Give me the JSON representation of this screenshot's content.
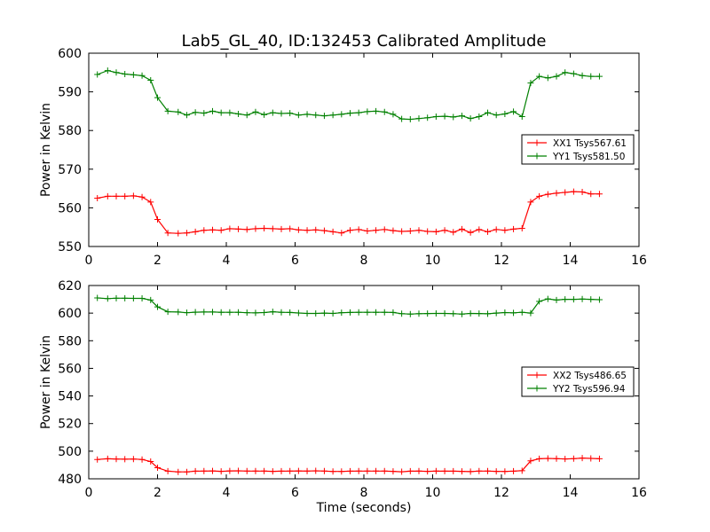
{
  "figure": {
    "title": "Lab5_GL_40, ID:132453 Calibrated Amplitude",
    "xlabel": "Time (seconds)"
  },
  "chart_data": [
    {
      "type": "line",
      "title": "Lab5_GL_40, ID:132453 Calibrated Amplitude",
      "xlabel": "",
      "ylabel": "Power in Kelvin",
      "xlim": [
        0,
        16
      ],
      "ylim": [
        550,
        600
      ],
      "xticks": [
        "0",
        "2",
        "4",
        "6",
        "8",
        "10",
        "12",
        "14",
        "16"
      ],
      "yticks": [
        "550",
        "560",
        "570",
        "580",
        "590",
        "600"
      ],
      "grid": false,
      "legend_position": "right",
      "x": [
        0.25,
        0.55,
        0.8,
        1.05,
        1.3,
        1.55,
        1.8,
        2.0,
        2.3,
        2.6,
        2.85,
        3.1,
        3.35,
        3.6,
        3.85,
        4.1,
        4.35,
        4.6,
        4.85,
        5.1,
        5.35,
        5.6,
        5.85,
        6.1,
        6.35,
        6.6,
        6.85,
        7.1,
        7.35,
        7.6,
        7.85,
        8.1,
        8.35,
        8.6,
        8.85,
        9.1,
        9.35,
        9.6,
        9.85,
        10.1,
        10.35,
        10.6,
        10.85,
        11.1,
        11.35,
        11.6,
        11.85,
        12.1,
        12.35,
        12.6,
        12.85,
        13.1,
        13.35,
        13.6,
        13.85,
        14.1,
        14.35,
        14.6,
        14.85
      ],
      "series": [
        {
          "name": "XX1 Tsys567.61",
          "color": "#ff0000",
          "values": [
            562.5,
            563.0,
            563.0,
            563.0,
            563.1,
            562.8,
            561.5,
            557.0,
            553.5,
            553.4,
            553.5,
            553.8,
            554.2,
            554.3,
            554.2,
            554.6,
            554.5,
            554.4,
            554.6,
            554.7,
            554.6,
            554.5,
            554.6,
            554.3,
            554.2,
            554.3,
            554.1,
            553.8,
            553.5,
            554.2,
            554.4,
            554.0,
            554.2,
            554.4,
            554.1,
            553.9,
            554.0,
            554.2,
            553.9,
            553.8,
            554.2,
            553.7,
            554.5,
            553.6,
            554.4,
            553.8,
            554.4,
            554.2,
            554.5,
            554.7,
            561.5,
            563.0,
            563.5,
            563.8,
            564.0,
            564.2,
            564.1,
            563.6,
            563.6
          ]
        },
        {
          "name": "YY1 Tsys581.50",
          "color": "#008000",
          "values": [
            594.5,
            595.5,
            595.0,
            594.6,
            594.4,
            594.2,
            593.0,
            588.5,
            585.0,
            584.8,
            584.0,
            584.7,
            584.5,
            585.0,
            584.6,
            584.6,
            584.3,
            584.0,
            584.8,
            584.1,
            584.6,
            584.4,
            584.5,
            584.0,
            584.2,
            584.0,
            583.8,
            584.0,
            584.2,
            584.5,
            584.6,
            584.9,
            585.0,
            584.8,
            584.2,
            583.0,
            582.9,
            583.1,
            583.3,
            583.6,
            583.7,
            583.5,
            583.8,
            583.1,
            583.6,
            584.6,
            584.0,
            584.3,
            584.9,
            583.6,
            592.3,
            594.0,
            593.6,
            594.0,
            595.0,
            594.7,
            594.2,
            594.0,
            594.0
          ]
        }
      ]
    },
    {
      "type": "line",
      "title": "",
      "xlabel": "Time (seconds)",
      "ylabel": "Power in Kelvin",
      "xlim": [
        0,
        16
      ],
      "ylim": [
        480,
        620
      ],
      "xticks": [
        "0",
        "2",
        "4",
        "6",
        "8",
        "10",
        "12",
        "14",
        "16"
      ],
      "yticks": [
        "480",
        "500",
        "520",
        "540",
        "560",
        "580",
        "600",
        "620"
      ],
      "grid": false,
      "legend_position": "right",
      "x": [
        0.25,
        0.55,
        0.8,
        1.05,
        1.3,
        1.55,
        1.8,
        2.0,
        2.3,
        2.6,
        2.85,
        3.1,
        3.35,
        3.6,
        3.85,
        4.1,
        4.35,
        4.6,
        4.85,
        5.1,
        5.35,
        5.6,
        5.85,
        6.1,
        6.35,
        6.6,
        6.85,
        7.1,
        7.35,
        7.6,
        7.85,
        8.1,
        8.35,
        8.6,
        8.85,
        9.1,
        9.35,
        9.6,
        9.85,
        10.1,
        10.35,
        10.6,
        10.85,
        11.1,
        11.35,
        11.6,
        11.85,
        12.1,
        12.35,
        12.6,
        12.85,
        13.1,
        13.35,
        13.6,
        13.85,
        14.1,
        14.35,
        14.6,
        14.85
      ],
      "series": [
        {
          "name": "XX2 Tsys486.65",
          "color": "#ff0000",
          "values": [
            494.0,
            494.5,
            494.3,
            494.2,
            494.3,
            494.0,
            492.5,
            488.0,
            485.5,
            485.0,
            485.0,
            485.5,
            485.6,
            485.7,
            485.4,
            485.7,
            485.8,
            485.6,
            485.6,
            485.6,
            485.4,
            485.5,
            485.6,
            485.7,
            485.6,
            485.8,
            485.6,
            485.3,
            485.3,
            485.5,
            485.6,
            485.6,
            485.6,
            485.6,
            485.4,
            485.1,
            485.5,
            485.6,
            485.4,
            485.6,
            485.5,
            485.5,
            485.4,
            485.2,
            485.6,
            485.6,
            485.4,
            485.3,
            485.5,
            485.9,
            493.0,
            494.5,
            494.8,
            494.6,
            494.4,
            494.6,
            495.0,
            494.8,
            494.5
          ]
        },
        {
          "name": "YY2 Tsys596.94",
          "color": "#008000",
          "values": [
            611.0,
            610.5,
            610.8,
            610.8,
            610.7,
            610.7,
            609.5,
            604.5,
            601.0,
            600.8,
            600.3,
            600.7,
            600.8,
            600.8,
            600.6,
            600.6,
            600.6,
            600.3,
            600.2,
            600.4,
            601.0,
            600.6,
            600.5,
            600.1,
            599.8,
            599.8,
            600.0,
            599.8,
            600.3,
            600.5,
            600.6,
            600.6,
            600.6,
            600.6,
            600.5,
            599.6,
            599.3,
            599.6,
            599.7,
            599.8,
            599.8,
            599.6,
            599.3,
            599.8,
            599.7,
            599.5,
            600.0,
            600.4,
            600.2,
            600.6,
            600.0,
            608.5,
            610.3,
            609.5,
            610.0,
            610.0,
            610.2,
            610.0,
            609.7
          ]
        }
      ]
    }
  ]
}
